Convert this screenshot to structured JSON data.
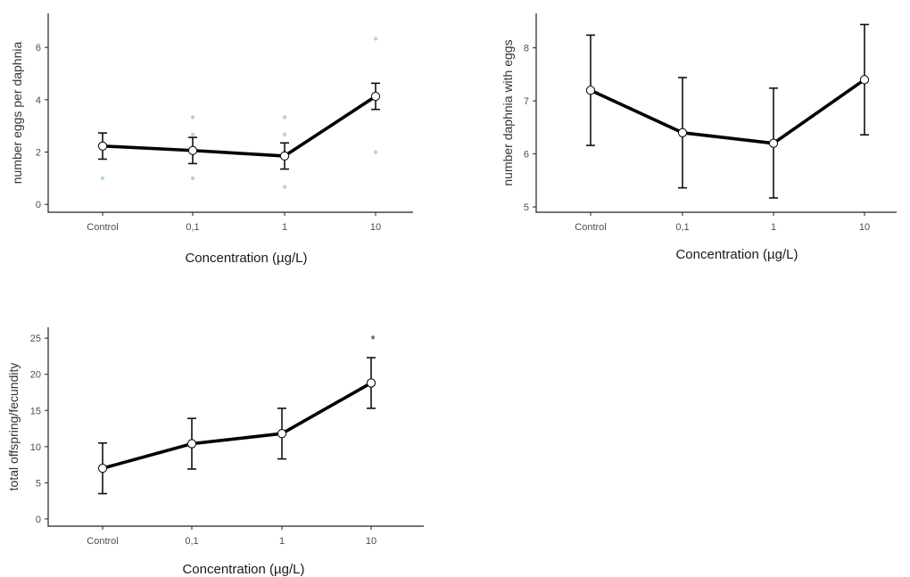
{
  "colors": {
    "line": "#000000",
    "marker_fill": "#ffffff",
    "raw_points": "#add8e6",
    "axis": "#222222"
  },
  "chart_data": [
    {
      "type": "line",
      "categories": [
        "Control",
        "0,1",
        "1",
        "10"
      ],
      "xlabel": "Concentration (µg/L)",
      "ylabel": "number eggs per daphnia",
      "ylim": [
        -0.3,
        7.3
      ],
      "yticks": [
        0,
        2,
        4,
        6
      ],
      "error_bars": true,
      "means": [
        2.23,
        2.06,
        1.85,
        4.13
      ],
      "err_low": [
        1.73,
        1.56,
        1.35,
        3.63
      ],
      "err_high": [
        2.73,
        2.56,
        2.35,
        4.63
      ],
      "raw_points": [
        {
          "x": "Control",
          "y": 1.0
        },
        {
          "x": "0,1",
          "y": 1.0
        },
        {
          "x": "0,1",
          "y": 2.67
        },
        {
          "x": "0,1",
          "y": 3.33
        },
        {
          "x": "1",
          "y": 0.67
        },
        {
          "x": "1",
          "y": 2.0
        },
        {
          "x": "1",
          "y": 2.67
        },
        {
          "x": "1",
          "y": 3.33
        },
        {
          "x": "10",
          "y": 2.0
        },
        {
          "x": "10",
          "y": 6.33
        }
      ],
      "annotations": []
    },
    {
      "type": "line",
      "categories": [
        "Control",
        "0,1",
        "1",
        "10"
      ],
      "xlabel": "Concentration (µg/L)",
      "ylabel": "number daphnia with eggs",
      "ylim": [
        4.9,
        8.65
      ],
      "yticks": [
        5,
        6,
        7,
        8
      ],
      "error_bars": true,
      "means": [
        7.2,
        6.4,
        6.2,
        7.4
      ],
      "err_low": [
        6.16,
        5.36,
        5.17,
        6.36
      ],
      "err_high": [
        8.24,
        7.44,
        7.24,
        8.44
      ],
      "raw_points": [],
      "annotations": []
    },
    {
      "type": "line",
      "categories": [
        "Control",
        "0,1",
        "1",
        "10"
      ],
      "xlabel": "Concentration (µg/L)",
      "ylabel": "total offspring/fecundity",
      "ylim": [
        -1,
        26.5
      ],
      "yticks": [
        0,
        5,
        10,
        15,
        20,
        25
      ],
      "error_bars": true,
      "means": [
        7.0,
        10.4,
        11.8,
        18.8
      ],
      "err_low": [
        3.5,
        6.9,
        8.3,
        15.3
      ],
      "err_high": [
        10.5,
        13.9,
        15.3,
        22.3
      ],
      "raw_points": [],
      "annotations": [
        {
          "category": "10",
          "text": "*"
        }
      ]
    }
  ]
}
